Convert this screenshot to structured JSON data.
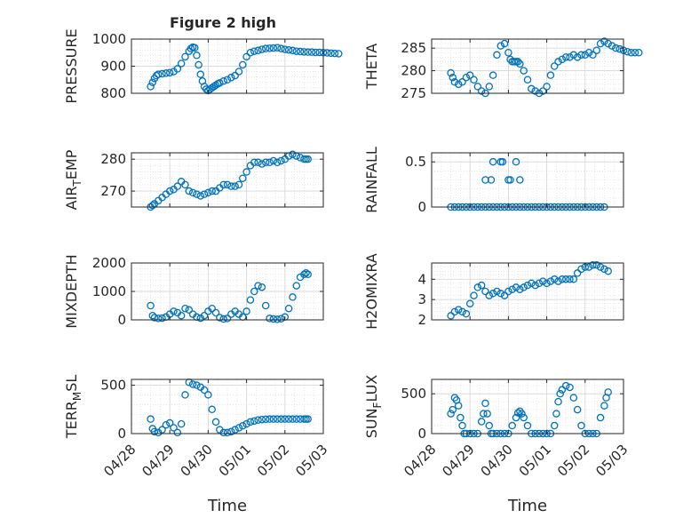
{
  "figure": {
    "title": "Figure 2 high",
    "xlabel": "Time",
    "marker_color": "#0072BD",
    "grid_color": "#d8d8d8"
  },
  "chart_data": [
    {
      "type": "scatter",
      "id": "pressure",
      "ylabel": "PRESSURE",
      "ylabel_sub": null,
      "ylim": [
        800,
        1000
      ],
      "yticks": [
        800,
        900,
        1000
      ],
      "yticklabels": [
        "800",
        "900",
        "1000"
      ],
      "xlim": [
        "04/28 12:00",
        "05/03 00:00"
      ],
      "xtick_labels_shown": false,
      "grid": true,
      "x_days": [
        0,
        0.05,
        0.1,
        0.15,
        0.2,
        0.3,
        0.4,
        0.5,
        0.6,
        0.7,
        0.8,
        0.9,
        1.0,
        1.05,
        1.1,
        1.15,
        1.2,
        1.25,
        1.3,
        1.35,
        1.4,
        1.45,
        1.5,
        1.55,
        1.6,
        1.65,
        1.7,
        1.75,
        1.8,
        1.9,
        2.0,
        2.1,
        2.2,
        2.3,
        2.4,
        2.5,
        2.6,
        2.7,
        2.8,
        2.9,
        3.0,
        3.1,
        3.2,
        3.3,
        3.4,
        3.5,
        3.6,
        3.7,
        3.8,
        3.9,
        4.0,
        4.1,
        4.2,
        4.3,
        4.4,
        4.5,
        4.6,
        4.7,
        4.8,
        4.9
      ],
      "values": [
        825,
        840,
        855,
        865,
        870,
        872,
        874,
        876,
        880,
        890,
        910,
        935,
        955,
        965,
        970,
        968,
        940,
        905,
        870,
        845,
        825,
        815,
        810,
        815,
        820,
        825,
        830,
        835,
        838,
        845,
        850,
        858,
        865,
        880,
        905,
        935,
        950,
        955,
        958,
        962,
        965,
        966,
        967,
        968,
        965,
        962,
        960,
        958,
        955,
        954,
        953,
        952,
        952,
        951,
        951,
        950,
        949,
        948,
        947,
        946
      ]
    },
    {
      "type": "scatter",
      "id": "theta",
      "ylabel": "THETA",
      "ylabel_sub": null,
      "ylim": [
        275,
        287
      ],
      "yticks": [
        275,
        280,
        285
      ],
      "yticklabels": [
        "275",
        "280",
        "285"
      ],
      "xlim": [
        "04/28 12:00",
        "05/03 00:00"
      ],
      "xtick_labels_shown": false,
      "grid": true,
      "x_days": [
        0,
        0.05,
        0.1,
        0.2,
        0.3,
        0.4,
        0.5,
        0.6,
        0.7,
        0.8,
        0.9,
        1.0,
        1.1,
        1.2,
        1.3,
        1.4,
        1.5,
        1.55,
        1.6,
        1.65,
        1.7,
        1.75,
        1.8,
        1.9,
        2.0,
        2.1,
        2.2,
        2.3,
        2.4,
        2.5,
        2.6,
        2.7,
        2.8,
        2.9,
        3.0,
        3.1,
        3.2,
        3.3,
        3.4,
        3.5,
        3.6,
        3.7,
        3.8,
        3.9,
        4.0,
        4.1,
        4.2,
        4.3,
        4.4,
        4.5,
        4.6,
        4.7,
        4.8,
        4.9
      ],
      "values": [
        279.5,
        278.5,
        277.5,
        277,
        277.5,
        278.5,
        279,
        278,
        276.5,
        275.5,
        275,
        276.5,
        279,
        283.5,
        285.5,
        286,
        284,
        282.5,
        282,
        282,
        282,
        282,
        281.5,
        280,
        278,
        276,
        275.5,
        275,
        275.5,
        276.5,
        279,
        281,
        282,
        282.5,
        283,
        283,
        283.5,
        283,
        283.5,
        283.5,
        284,
        283.5,
        284.5,
        286,
        286.5,
        286,
        285.5,
        285,
        284.8,
        284.5,
        284.2,
        284,
        284,
        284
      ]
    },
    {
      "type": "scatter",
      "id": "air_temp",
      "ylabel": "AIR",
      "ylabel_sub": "T",
      "ylabel_suffix": "EMP",
      "ylim": [
        265,
        282
      ],
      "yticks": [
        270,
        280
      ],
      "yticklabels": [
        "270",
        "280"
      ],
      "xlim": [
        "04/28 12:00",
        "05/03 00:00"
      ],
      "xtick_labels_shown": false,
      "grid": true,
      "x_days": [
        0,
        0.05,
        0.1,
        0.2,
        0.3,
        0.4,
        0.5,
        0.6,
        0.7,
        0.8,
        0.9,
        1.0,
        1.1,
        1.2,
        1.3,
        1.4,
        1.5,
        1.6,
        1.7,
        1.8,
        1.9,
        2.0,
        2.1,
        2.2,
        2.3,
        2.4,
        2.5,
        2.6,
        2.7,
        2.8,
        2.9,
        3.0,
        3.1,
        3.2,
        3.3,
        3.4,
        3.5,
        3.6,
        3.7,
        3.8,
        3.9,
        4.0,
        4.05,
        4.1
      ],
      "values": [
        265,
        265.5,
        266,
        267,
        268,
        269,
        270,
        270.5,
        271.5,
        273,
        272,
        270,
        269.5,
        269,
        268.5,
        269,
        269.5,
        270,
        270,
        271,
        272,
        272,
        271.5,
        271.5,
        272,
        274,
        276,
        278,
        279,
        279,
        278.5,
        279,
        279,
        279.5,
        279,
        279.5,
        280,
        281,
        281.5,
        281,
        280.5,
        280,
        280,
        280
      ]
    },
    {
      "type": "scatter",
      "id": "rainfall",
      "ylabel": "RAINFALL",
      "ylabel_sub": null,
      "ylim": [
        0,
        0.6
      ],
      "yticks": [
        0,
        0.5
      ],
      "yticklabels": [
        "0",
        "0.5"
      ],
      "xlim": [
        "04/28 12:00",
        "05/03 00:00"
      ],
      "xtick_labels_shown": false,
      "grid": true,
      "x_days": [
        0,
        0.1,
        0.2,
        0.3,
        0.4,
        0.5,
        0.6,
        0.7,
        0.8,
        0.9,
        1.0,
        1.1,
        1.2,
        1.3,
        1.4,
        1.5,
        1.6,
        1.7,
        1.8,
        1.9,
        2.0,
        2.1,
        2.2,
        2.3,
        2.4,
        2.5,
        2.6,
        2.7,
        2.8,
        2.9,
        3.0,
        3.1,
        3.2,
        3.3,
        3.4,
        3.5,
        3.6,
        3.7,
        3.8,
        3.9,
        4.0,
        0.9,
        1.05,
        1.1,
        1.3,
        1.35,
        1.5,
        1.55,
        1.7,
        1.8
      ],
      "values": [
        0,
        0,
        0,
        0,
        0,
        0,
        0,
        0,
        0,
        0,
        0,
        0,
        0,
        0,
        0,
        0,
        0,
        0,
        0,
        0,
        0,
        0,
        0,
        0,
        0,
        0,
        0,
        0,
        0,
        0,
        0,
        0,
        0,
        0,
        0,
        0,
        0,
        0,
        0,
        0,
        0,
        0.3,
        0.3,
        0.5,
        0.5,
        0.5,
        0.3,
        0.3,
        0.5,
        0.3
      ]
    },
    {
      "type": "scatter",
      "id": "mixdepth",
      "ylabel": "MIXDEPTH",
      "ylabel_sub": null,
      "ylim": [
        0,
        2000
      ],
      "yticks": [
        0,
        1000,
        2000
      ],
      "yticklabels": [
        "0",
        "1000",
        "2000"
      ],
      "xlim": [
        "04/28 12:00",
        "05/03 00:00"
      ],
      "xtick_labels_shown": false,
      "grid": true,
      "x_days": [
        0,
        0.05,
        0.1,
        0.2,
        0.3,
        0.4,
        0.5,
        0.6,
        0.7,
        0.8,
        0.9,
        1.0,
        1.1,
        1.2,
        1.3,
        1.4,
        1.5,
        1.6,
        1.7,
        1.8,
        1.9,
        2.0,
        2.1,
        2.2,
        2.3,
        2.4,
        2.5,
        2.6,
        2.7,
        2.8,
        2.9,
        3.0,
        3.1,
        3.2,
        3.3,
        3.4,
        3.5,
        3.6,
        3.7,
        3.8,
        3.9,
        4.0,
        4.05,
        4.1
      ],
      "values": [
        500,
        150,
        80,
        50,
        60,
        100,
        200,
        300,
        250,
        150,
        400,
        350,
        200,
        100,
        60,
        150,
        300,
        400,
        250,
        80,
        30,
        50,
        200,
        300,
        200,
        100,
        300,
        700,
        1000,
        1200,
        1150,
        500,
        50,
        30,
        20,
        40,
        100,
        400,
        800,
        1200,
        1500,
        1600,
        1650,
        1600
      ]
    },
    {
      "type": "scatter",
      "id": "h2omixra",
      "ylabel": "H2OMIXRA",
      "ylabel_sub": null,
      "ylim": [
        2,
        4.8
      ],
      "yticks": [
        2,
        3,
        4
      ],
      "yticklabels": [
        "2",
        "3",
        "4"
      ],
      "xlim": [
        "04/28 12:00",
        "05/03 00:00"
      ],
      "xtick_labels_shown": false,
      "grid": true,
      "x_days": [
        0,
        0.1,
        0.2,
        0.3,
        0.4,
        0.5,
        0.6,
        0.7,
        0.8,
        0.9,
        1.0,
        1.1,
        1.2,
        1.3,
        1.4,
        1.5,
        1.6,
        1.7,
        1.8,
        1.9,
        2.0,
        2.1,
        2.2,
        2.3,
        2.4,
        2.5,
        2.6,
        2.7,
        2.8,
        2.9,
        3.0,
        3.1,
        3.2,
        3.3,
        3.4,
        3.5,
        3.6,
        3.7,
        3.8,
        3.9,
        4.0,
        4.1
      ],
      "values": [
        2.2,
        2.4,
        2.5,
        2.4,
        2.3,
        2.8,
        3.2,
        3.6,
        3.7,
        3.4,
        3.2,
        3.3,
        3.4,
        3.3,
        3.2,
        3.4,
        3.5,
        3.6,
        3.5,
        3.6,
        3.7,
        3.8,
        3.7,
        3.8,
        3.9,
        3.8,
        3.9,
        4.0,
        3.9,
        4.0,
        4.0,
        4.0,
        4.0,
        4.3,
        4.5,
        4.6,
        4.6,
        4.7,
        4.7,
        4.6,
        4.5,
        4.4
      ]
    },
    {
      "type": "scatter",
      "id": "terr_msl",
      "ylabel": "TERR",
      "ylabel_sub": "M",
      "ylabel_suffix": "SL",
      "ylim": [
        0,
        560
      ],
      "yticks": [
        0,
        500
      ],
      "yticklabels": [
        "0",
        "500"
      ],
      "xlim": [
        "04/28 12:00",
        "05/03 00:00"
      ],
      "xtick_labels_shown": true,
      "grid": true,
      "xticks": [
        "04/28",
        "04/29",
        "04/30",
        "05/01",
        "05/02",
        "05/03"
      ],
      "x_days": [
        0,
        0.05,
        0.1,
        0.2,
        0.3,
        0.4,
        0.5,
        0.6,
        0.7,
        0.8,
        0.9,
        1.0,
        1.1,
        1.2,
        1.3,
        1.4,
        1.5,
        1.6,
        1.7,
        1.8,
        1.9,
        2.0,
        2.1,
        2.2,
        2.3,
        2.4,
        2.5,
        2.6,
        2.7,
        2.8,
        2.9,
        3.0,
        3.1,
        3.2,
        3.3,
        3.4,
        3.5,
        3.6,
        3.7,
        3.8,
        3.9,
        4.0,
        4.05,
        4.1
      ],
      "values": [
        150,
        50,
        20,
        10,
        40,
        90,
        110,
        60,
        10,
        100,
        400,
        530,
        510,
        500,
        480,
        450,
        400,
        250,
        120,
        40,
        10,
        10,
        20,
        40,
        60,
        80,
        100,
        120,
        130,
        140,
        145,
        148,
        150,
        150,
        150,
        150,
        150,
        150,
        150,
        150,
        150,
        150,
        150,
        150
      ]
    },
    {
      "type": "scatter",
      "id": "sun_flux",
      "ylabel": "SUN",
      "ylabel_sub": "F",
      "ylabel_suffix": "LUX",
      "ylim": [
        0,
        680
      ],
      "yticks": [
        0,
        500
      ],
      "yticklabels": [
        "0",
        "500"
      ],
      "xlim": [
        "04/28 12:00",
        "05/03 00:00"
      ],
      "xtick_labels_shown": true,
      "grid": true,
      "xticks": [
        "04/28",
        "04/29",
        "04/30",
        "05/01",
        "05/02",
        "05/03"
      ],
      "x_days": [
        0,
        0.05,
        0.1,
        0.15,
        0.2,
        0.25,
        0.3,
        0.35,
        0.4,
        0.5,
        0.6,
        0.7,
        0.8,
        0.85,
        0.9,
        0.95,
        1.0,
        1.05,
        1.1,
        1.2,
        1.3,
        1.4,
        1.5,
        1.6,
        1.7,
        1.75,
        1.8,
        1.85,
        1.9,
        2.0,
        2.1,
        2.2,
        2.3,
        2.4,
        2.5,
        2.6,
        2.7,
        2.75,
        2.8,
        2.85,
        2.9,
        3.0,
        3.1,
        3.2,
        3.3,
        3.4,
        3.5,
        3.6,
        3.7,
        3.8,
        3.9,
        4.0,
        4.05,
        4.1
      ],
      "values": [
        250,
        300,
        450,
        420,
        350,
        200,
        100,
        0,
        0,
        0,
        0,
        0,
        150,
        250,
        380,
        250,
        100,
        0,
        0,
        0,
        0,
        0,
        0,
        100,
        200,
        260,
        280,
        250,
        200,
        100,
        0,
        0,
        0,
        0,
        0,
        0,
        100,
        250,
        400,
        500,
        550,
        600,
        580,
        450,
        300,
        100,
        0,
        0,
        0,
        0,
        200,
        350,
        450,
        520
      ]
    }
  ]
}
